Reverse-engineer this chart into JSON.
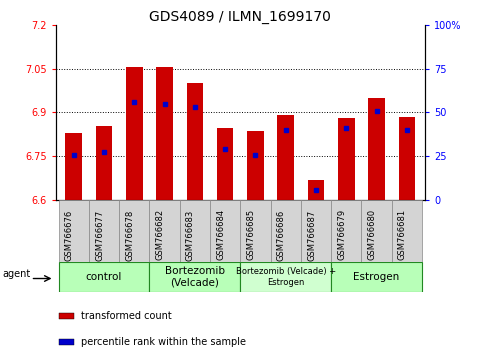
{
  "title": "GDS4089 / ILMN_1699170",
  "samples": [
    "GSM766676",
    "GSM766677",
    "GSM766678",
    "GSM766682",
    "GSM766683",
    "GSM766684",
    "GSM766685",
    "GSM766686",
    "GSM766687",
    "GSM766679",
    "GSM766680",
    "GSM766681"
  ],
  "bar_values": [
    6.83,
    6.855,
    7.055,
    7.055,
    7.0,
    6.845,
    6.835,
    6.89,
    6.67,
    6.88,
    6.95,
    6.885
  ],
  "percentile_values": [
    6.755,
    6.765,
    6.935,
    6.93,
    6.92,
    6.775,
    6.755,
    6.84,
    6.635,
    6.845,
    6.905,
    6.84
  ],
  "ymin": 6.6,
  "ymax": 7.2,
  "yticks": [
    6.6,
    6.75,
    6.9,
    7.05,
    7.2
  ],
  "ytick_labels": [
    "6.6",
    "6.75",
    "6.9",
    "7.05",
    "7.2"
  ],
  "right_yticks": [
    0,
    25,
    50,
    75,
    100
  ],
  "right_ytick_labels": [
    "0",
    "25",
    "50",
    "75",
    "100%"
  ],
  "bar_color": "#cc0000",
  "percentile_color": "#0000cc",
  "bar_bottom": 6.6,
  "groups": [
    {
      "label": "control",
      "start": 0,
      "end": 2,
      "color": "#b8ffb8"
    },
    {
      "label": "Bortezomib\n(Velcade)",
      "start": 3,
      "end": 5,
      "color": "#b8ffb8"
    },
    {
      "label": "Bortezomib (Velcade) +\nEstrogen",
      "start": 6,
      "end": 8,
      "color": "#d0ffd0"
    },
    {
      "label": "Estrogen",
      "start": 9,
      "end": 11,
      "color": "#b8ffb8"
    }
  ],
  "agent_label": "agent",
  "legend_items": [
    {
      "color": "#cc0000",
      "label": "transformed count"
    },
    {
      "color": "#0000cc",
      "label": "percentile rank within the sample"
    }
  ],
  "title_fontsize": 10,
  "tick_fontsize": 7,
  "sample_fontsize": 6,
  "group_fontsize": 7.5,
  "legend_fontsize": 7
}
